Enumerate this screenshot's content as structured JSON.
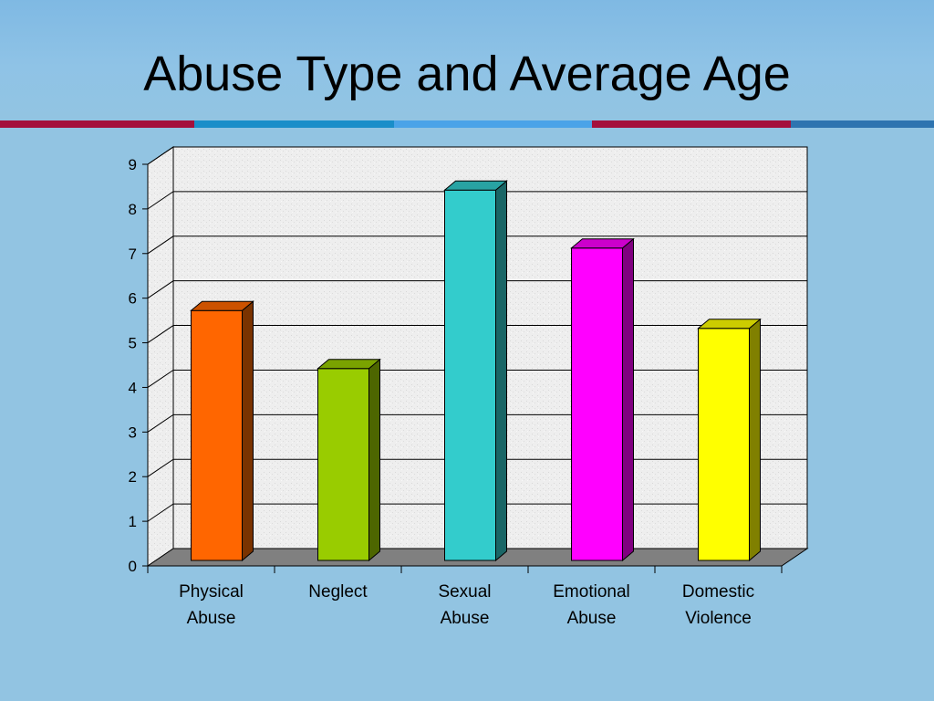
{
  "slide": {
    "background": "#92c4e2",
    "title": "Abuse Type and Average Age",
    "stripes": [
      {
        "color": "#a4103c"
      },
      {
        "color": "#1a8ec9"
      },
      {
        "color": "#4aa3e8"
      },
      {
        "color": "#a4103c"
      },
      {
        "color": "#2e74b0"
      }
    ]
  },
  "chart_data": {
    "type": "bar",
    "style": "3d",
    "title": "",
    "xlabel": "",
    "ylabel": "",
    "ylim": [
      0,
      9
    ],
    "yticks": [
      0,
      1,
      2,
      3,
      4,
      5,
      6,
      7,
      8,
      9
    ],
    "grid": true,
    "legend": "none",
    "categories": [
      [
        "Physical",
        "Abuse"
      ],
      [
        "Neglect"
      ],
      [
        "Sexual",
        "Abuse"
      ],
      [
        "Emotional",
        "Abuse"
      ],
      [
        "Domestic",
        "Violence"
      ]
    ],
    "values": [
      5.6,
      4.3,
      8.3,
      7.0,
      5.2
    ],
    "colors": [
      "#ff6600",
      "#99cc00",
      "#33cccc",
      "#ff00ff",
      "#ffff00"
    ],
    "side_colors": [
      "#7a3300",
      "#4d6600",
      "#1a6666",
      "#800080",
      "#808000"
    ],
    "top_colors": [
      "#cc5200",
      "#7aa300",
      "#28a3a3",
      "#cc00cc",
      "#cccc00"
    ]
  }
}
